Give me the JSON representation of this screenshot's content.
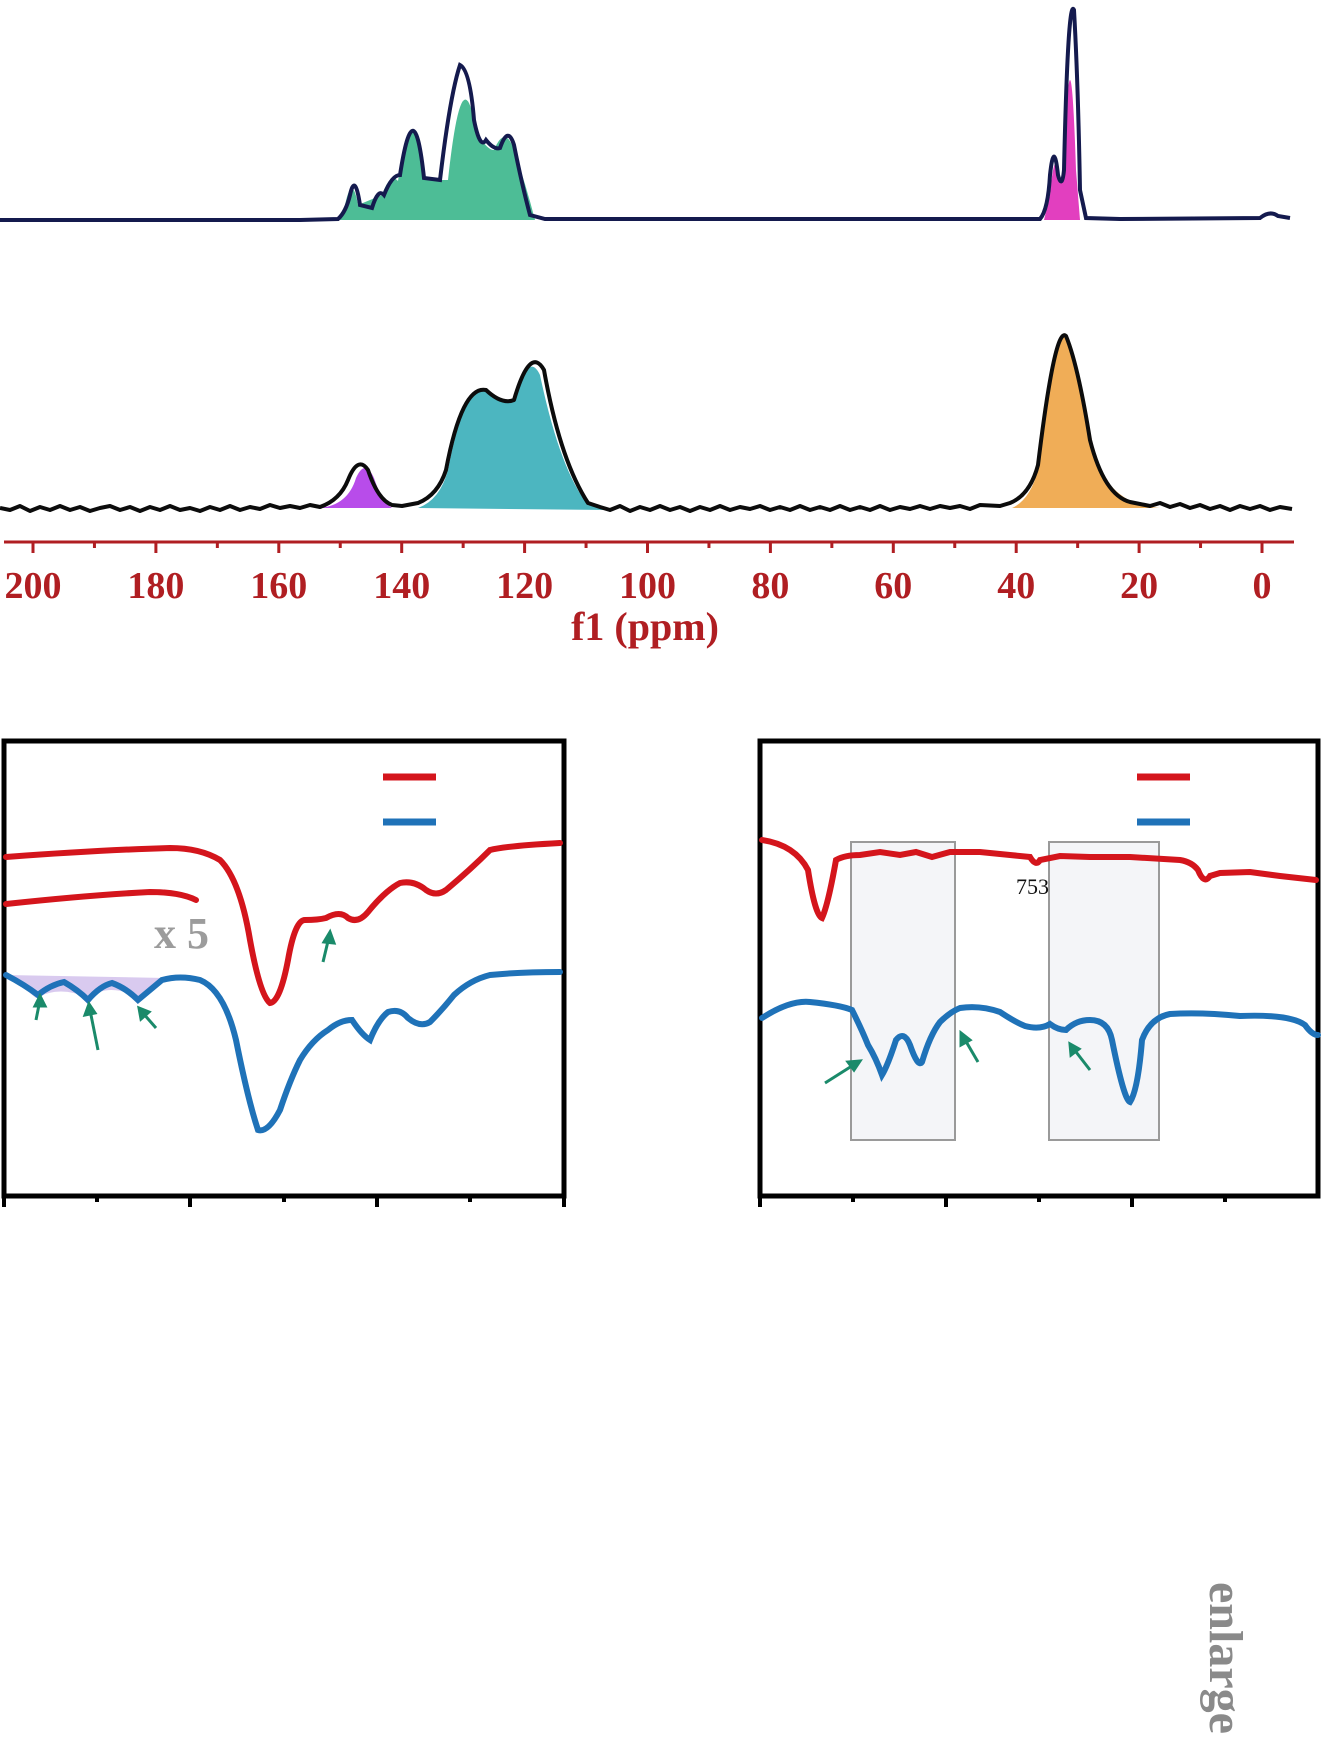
{
  "colors": {
    "axis_red": "#b01e22",
    "trace_red": "#d4151c",
    "trace_blue": "#1f72b8",
    "nmr_top_line": "#141a4e",
    "nmr_bottom_line": "#0c0c0c",
    "fill_aromatic_top": "#4dbd96",
    "fill_aliphatic_top": "#e23fbf",
    "fill_small_bottom": "#b84cea",
    "fill_aromatic_bottom": "#4cb6c0",
    "fill_aliphatic_bottom": "#f0ad57",
    "arrow_green": "#1a8a6a",
    "highlight_box": "#f4f5f8"
  },
  "chart_data": [
    {
      "type": "line",
      "description_kind": "13C NMR spectra (two stacked traces)",
      "xlabel": "f1 (ppm)",
      "xlim": [
        200,
        -5
      ],
      "x_ticks": [
        200,
        180,
        160,
        140,
        120,
        100,
        80,
        60,
        40,
        20,
        0
      ],
      "x_reversed": true,
      "series": [
        {
          "peaks_ppm": [
            147,
            142,
            138,
            130,
            127,
            123,
            34,
            31.5
          ],
          "peak_heights": [
            0.18,
            0.15,
            0.48,
            0.75,
            0.42,
            0.38,
            0.33,
            1.0
          ],
          "filled_regions": [
            {
              "from": 152,
              "to": 120,
              "color_key": "fill_aromatic_top"
            },
            {
              "from": 35,
              "to": 29,
              "color_key": "fill_aliphatic_top"
            }
          ]
        },
        {
          "peaks_ppm": [
            145,
            126,
            118,
            32
          ],
          "peak_heights": [
            0.28,
            0.73,
            0.85,
            1.0
          ],
          "filled_regions": [
            {
              "from": 150,
              "to": 140,
              "color_key": "fill_small_bottom"
            },
            {
              "from": 135,
              "to": 108,
              "color_key": "fill_aromatic_bottom"
            },
            {
              "from": 40,
              "to": 23,
              "color_key": "fill_aliphatic_bottom"
            }
          ]
        }
      ]
    },
    {
      "type": "line",
      "description_kind": "IR-style transmittance traces, left panel",
      "annotation": "x 5",
      "legend": [
        "red",
        "blue"
      ],
      "series": [
        {
          "color_key": "trace_red",
          "dip_positions": [
            0.47,
            0.56,
            0.63,
            0.75
          ],
          "dip_depths": [
            0.72,
            0.37,
            0.3,
            0.2
          ]
        },
        {
          "color_key": "trace_blue",
          "dip_positions": [
            0.06,
            0.15,
            0.25,
            0.46,
            0.65,
            0.77
          ],
          "dip_depths": [
            0.1,
            0.12,
            0.1,
            0.75,
            0.3,
            0.3
          ]
        }
      ]
    },
    {
      "type": "line",
      "description_kind": "IR-style transmittance traces, right panel",
      "annotation": "753",
      "legend": [
        "red",
        "blue"
      ],
      "series": [
        {
          "color_key": "trace_red",
          "dip_positions": [
            0.11,
            0.49,
            0.79
          ],
          "dip_depths": [
            0.8,
            0.15,
            0.22
          ]
        },
        {
          "color_key": "trace_blue",
          "dip_positions": [
            0.21,
            0.29,
            0.54,
            0.67
          ],
          "dip_depths": [
            0.7,
            0.6,
            0.1,
            0.9
          ]
        }
      ]
    }
  ],
  "side_text": "enlarge"
}
